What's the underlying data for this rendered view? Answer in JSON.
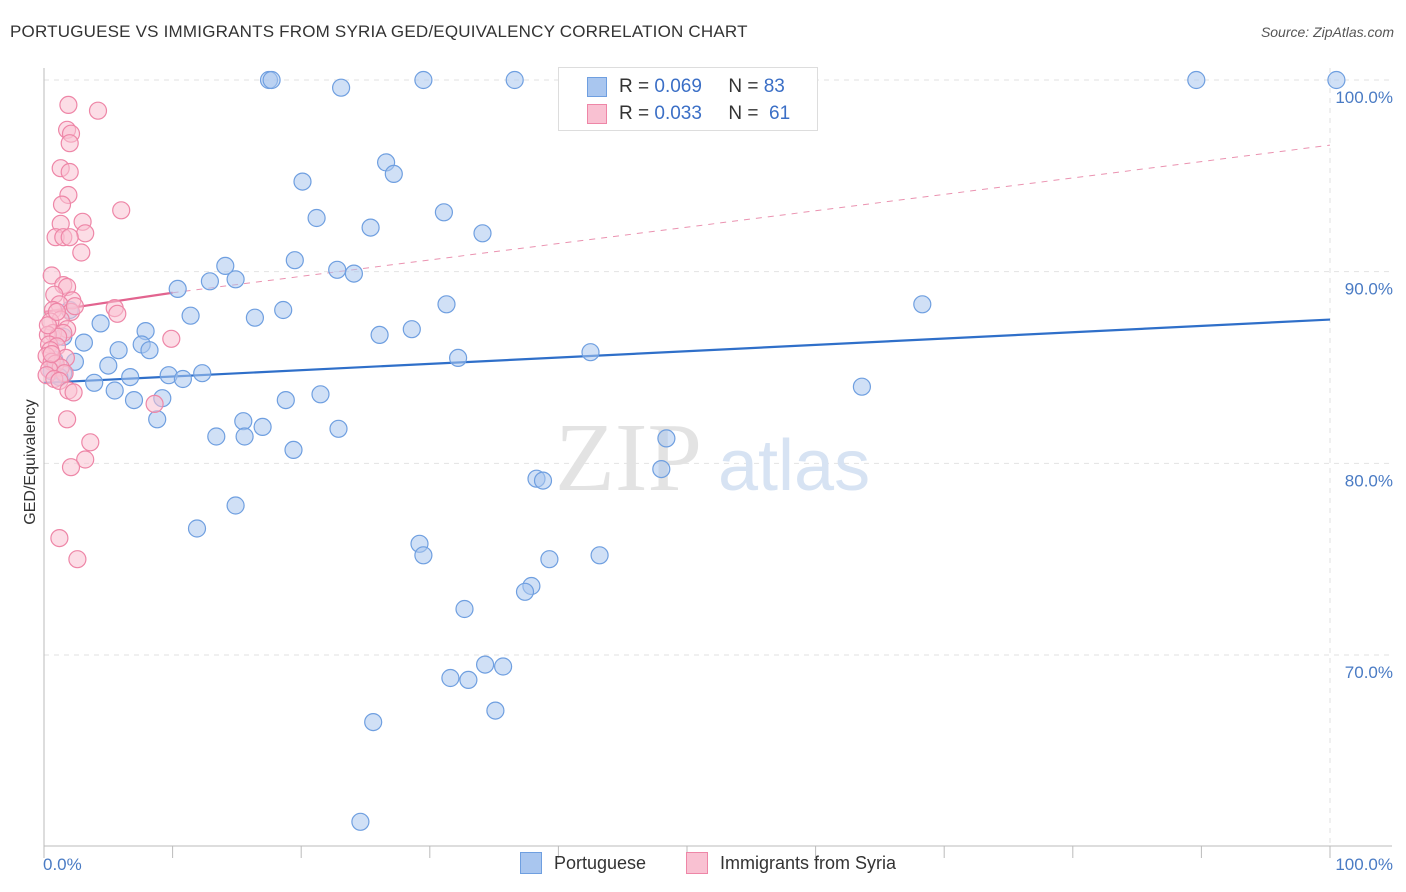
{
  "title": "PORTUGUESE VS IMMIGRANTS FROM SYRIA GED/EQUIVALENCY CORRELATION CHART",
  "source": "Source: ZipAtlas.com",
  "watermark": {
    "zip": "ZIP",
    "atlas": "atlas"
  },
  "legend": {
    "r_label": "R =",
    "n_label": "N =",
    "rows": [
      {
        "name": "Portuguese",
        "r": "0.069",
        "n": "83",
        "fill": "#a9c6ef",
        "stroke": "#6f9fe0"
      },
      {
        "name": "Immigrants from Syria",
        "r": "0.033",
        "n": "61",
        "fill": "#f9c1d2",
        "stroke": "#ee86a7"
      }
    ]
  },
  "chart_data": {
    "type": "scatter",
    "title": "PORTUGUESE VS IMMIGRANTS FROM SYRIA GED/EQUIVALENCY CORRELATION CHART",
    "xlabel": "",
    "ylabel": "GED/Equivalency",
    "xlim": [
      0,
      100
    ],
    "ylim": [
      60,
      102
    ],
    "x_tick_labels": [
      "0.0%",
      "100.0%"
    ],
    "y_ticks": [
      70,
      80,
      90,
      100
    ],
    "y_tick_labels": [
      "70.0%",
      "80.0%",
      "90.0%",
      "100.0%"
    ],
    "series": [
      {
        "name": "Portuguese",
        "color": "#6f9fe0",
        "fill": "#a9c6ef",
        "trend": {
          "x": [
            0,
            100
          ],
          "y": [
            84.2,
            87.5
          ],
          "style": "solid",
          "color": "#2f6fc9"
        },
        "points": [
          [
            17.5,
            100
          ],
          [
            17.7,
            100
          ],
          [
            23.1,
            99.6
          ],
          [
            29.5,
            100
          ],
          [
            36.6,
            100
          ],
          [
            45,
            100
          ],
          [
            89.6,
            100
          ],
          [
            100.5,
            100
          ],
          [
            26.6,
            95.7
          ],
          [
            27.2,
            95.1
          ],
          [
            20.1,
            94.7
          ],
          [
            31.1,
            93.1
          ],
          [
            21.2,
            92.8
          ],
          [
            25.4,
            92.3
          ],
          [
            34.1,
            92.0
          ],
          [
            19.5,
            90.6
          ],
          [
            14.1,
            90.3
          ],
          [
            22.8,
            90.1
          ],
          [
            24.1,
            89.9
          ],
          [
            14.9,
            89.6
          ],
          [
            12.9,
            89.5
          ],
          [
            10.4,
            89.1
          ],
          [
            31.3,
            88.3
          ],
          [
            68.3,
            88.3
          ],
          [
            18.6,
            88.0
          ],
          [
            16.4,
            87.6
          ],
          [
            11.4,
            87.7
          ],
          [
            4.4,
            87.3
          ],
          [
            7.9,
            86.9
          ],
          [
            28.6,
            87.0
          ],
          [
            26.1,
            86.7
          ],
          [
            3.1,
            86.3
          ],
          [
            7.6,
            86.2
          ],
          [
            5.8,
            85.9
          ],
          [
            8.2,
            85.9
          ],
          [
            42.5,
            85.8
          ],
          [
            32.2,
            85.5
          ],
          [
            1.5,
            84.7
          ],
          [
            5.0,
            85.1
          ],
          [
            9.7,
            84.6
          ],
          [
            12.3,
            84.7
          ],
          [
            6.7,
            84.5
          ],
          [
            10.8,
            84.4
          ],
          [
            3.9,
            84.2
          ],
          [
            63.6,
            84.0
          ],
          [
            5.5,
            83.8
          ],
          [
            21.5,
            83.6
          ],
          [
            7.0,
            83.3
          ],
          [
            9.2,
            83.4
          ],
          [
            18.8,
            83.3
          ],
          [
            8.8,
            82.3
          ],
          [
            15.5,
            82.2
          ],
          [
            17.0,
            81.9
          ],
          [
            22.9,
            81.8
          ],
          [
            13.4,
            81.4
          ],
          [
            15.6,
            81.4
          ],
          [
            48.4,
            81.3
          ],
          [
            19.4,
            80.7
          ],
          [
            48.0,
            79.7
          ],
          [
            38.3,
            79.2
          ],
          [
            38.8,
            79.1
          ],
          [
            14.9,
            77.8
          ],
          [
            11.9,
            76.6
          ],
          [
            29.2,
            75.8
          ],
          [
            29.5,
            75.2
          ],
          [
            39.3,
            75.0
          ],
          [
            43.2,
            75.2
          ],
          [
            37.9,
            73.6
          ],
          [
            37.4,
            73.3
          ],
          [
            32.7,
            72.4
          ],
          [
            34.3,
            69.5
          ],
          [
            35.7,
            69.4
          ],
          [
            31.6,
            68.8
          ],
          [
            33.0,
            68.7
          ],
          [
            35.1,
            67.1
          ],
          [
            25.6,
            66.5
          ],
          [
            24.6,
            61.3
          ],
          [
            2.0,
            88.0
          ],
          [
            1.5,
            86.6
          ],
          [
            0.8,
            85.4
          ],
          [
            2.4,
            85.3
          ],
          [
            0.6,
            84.8
          ],
          [
            1.2,
            84.5
          ]
        ]
      },
      {
        "name": "Immigrants from Syria",
        "color": "#ee86a7",
        "fill": "#f9c1d2",
        "trend": {
          "x": [
            0,
            10
          ],
          "y": [
            87.9,
            88.9
          ],
          "style": "solid",
          "color": "#e2648f",
          "extension": {
            "x": [
              10,
              100
            ],
            "y": [
              88.9,
              96.6
            ],
            "style": "dashed"
          }
        },
        "points": [
          [
            1.9,
            98.7
          ],
          [
            4.2,
            98.4
          ],
          [
            1.8,
            97.4
          ],
          [
            2.1,
            97.2
          ],
          [
            2.0,
            96.7
          ],
          [
            1.3,
            95.4
          ],
          [
            2.0,
            95.2
          ],
          [
            1.9,
            94.0
          ],
          [
            1.4,
            93.5
          ],
          [
            6.0,
            93.2
          ],
          [
            3.0,
            92.6
          ],
          [
            1.3,
            92.5
          ],
          [
            3.2,
            92.0
          ],
          [
            0.9,
            91.8
          ],
          [
            1.5,
            91.8
          ],
          [
            2.0,
            91.8
          ],
          [
            2.9,
            91.0
          ],
          [
            0.6,
            89.8
          ],
          [
            1.5,
            89.3
          ],
          [
            1.8,
            89.2
          ],
          [
            0.8,
            88.8
          ],
          [
            2.2,
            88.5
          ],
          [
            1.2,
            88.3
          ],
          [
            5.5,
            88.1
          ],
          [
            0.7,
            88.0
          ],
          [
            2.1,
            87.9
          ],
          [
            5.7,
            87.8
          ],
          [
            1.3,
            87.5
          ],
          [
            0.5,
            87.4
          ],
          [
            1.8,
            87.0
          ],
          [
            0.7,
            86.8
          ],
          [
            1.5,
            86.8
          ],
          [
            0.3,
            86.7
          ],
          [
            1.1,
            86.6
          ],
          [
            0.4,
            86.2
          ],
          [
            1.0,
            86.1
          ],
          [
            0.5,
            85.9
          ],
          [
            0.2,
            85.6
          ],
          [
            1.7,
            85.5
          ],
          [
            9.9,
            86.5
          ],
          [
            0.6,
            85.3
          ],
          [
            0.9,
            85.2
          ],
          [
            1.3,
            85.0
          ],
          [
            0.4,
            84.9
          ],
          [
            1.6,
            84.7
          ],
          [
            0.2,
            84.6
          ],
          [
            0.8,
            84.4
          ],
          [
            1.2,
            84.3
          ],
          [
            1.9,
            83.8
          ],
          [
            2.3,
            83.7
          ],
          [
            8.6,
            83.1
          ],
          [
            1.8,
            82.3
          ],
          [
            3.6,
            81.1
          ],
          [
            3.2,
            80.2
          ],
          [
            2.1,
            79.8
          ],
          [
            1.2,
            76.1
          ],
          [
            2.6,
            75.0
          ],
          [
            0.3,
            87.2
          ],
          [
            0.6,
            85.7
          ],
          [
            2.4,
            88.2
          ],
          [
            1.0,
            87.9
          ]
        ]
      }
    ]
  }
}
